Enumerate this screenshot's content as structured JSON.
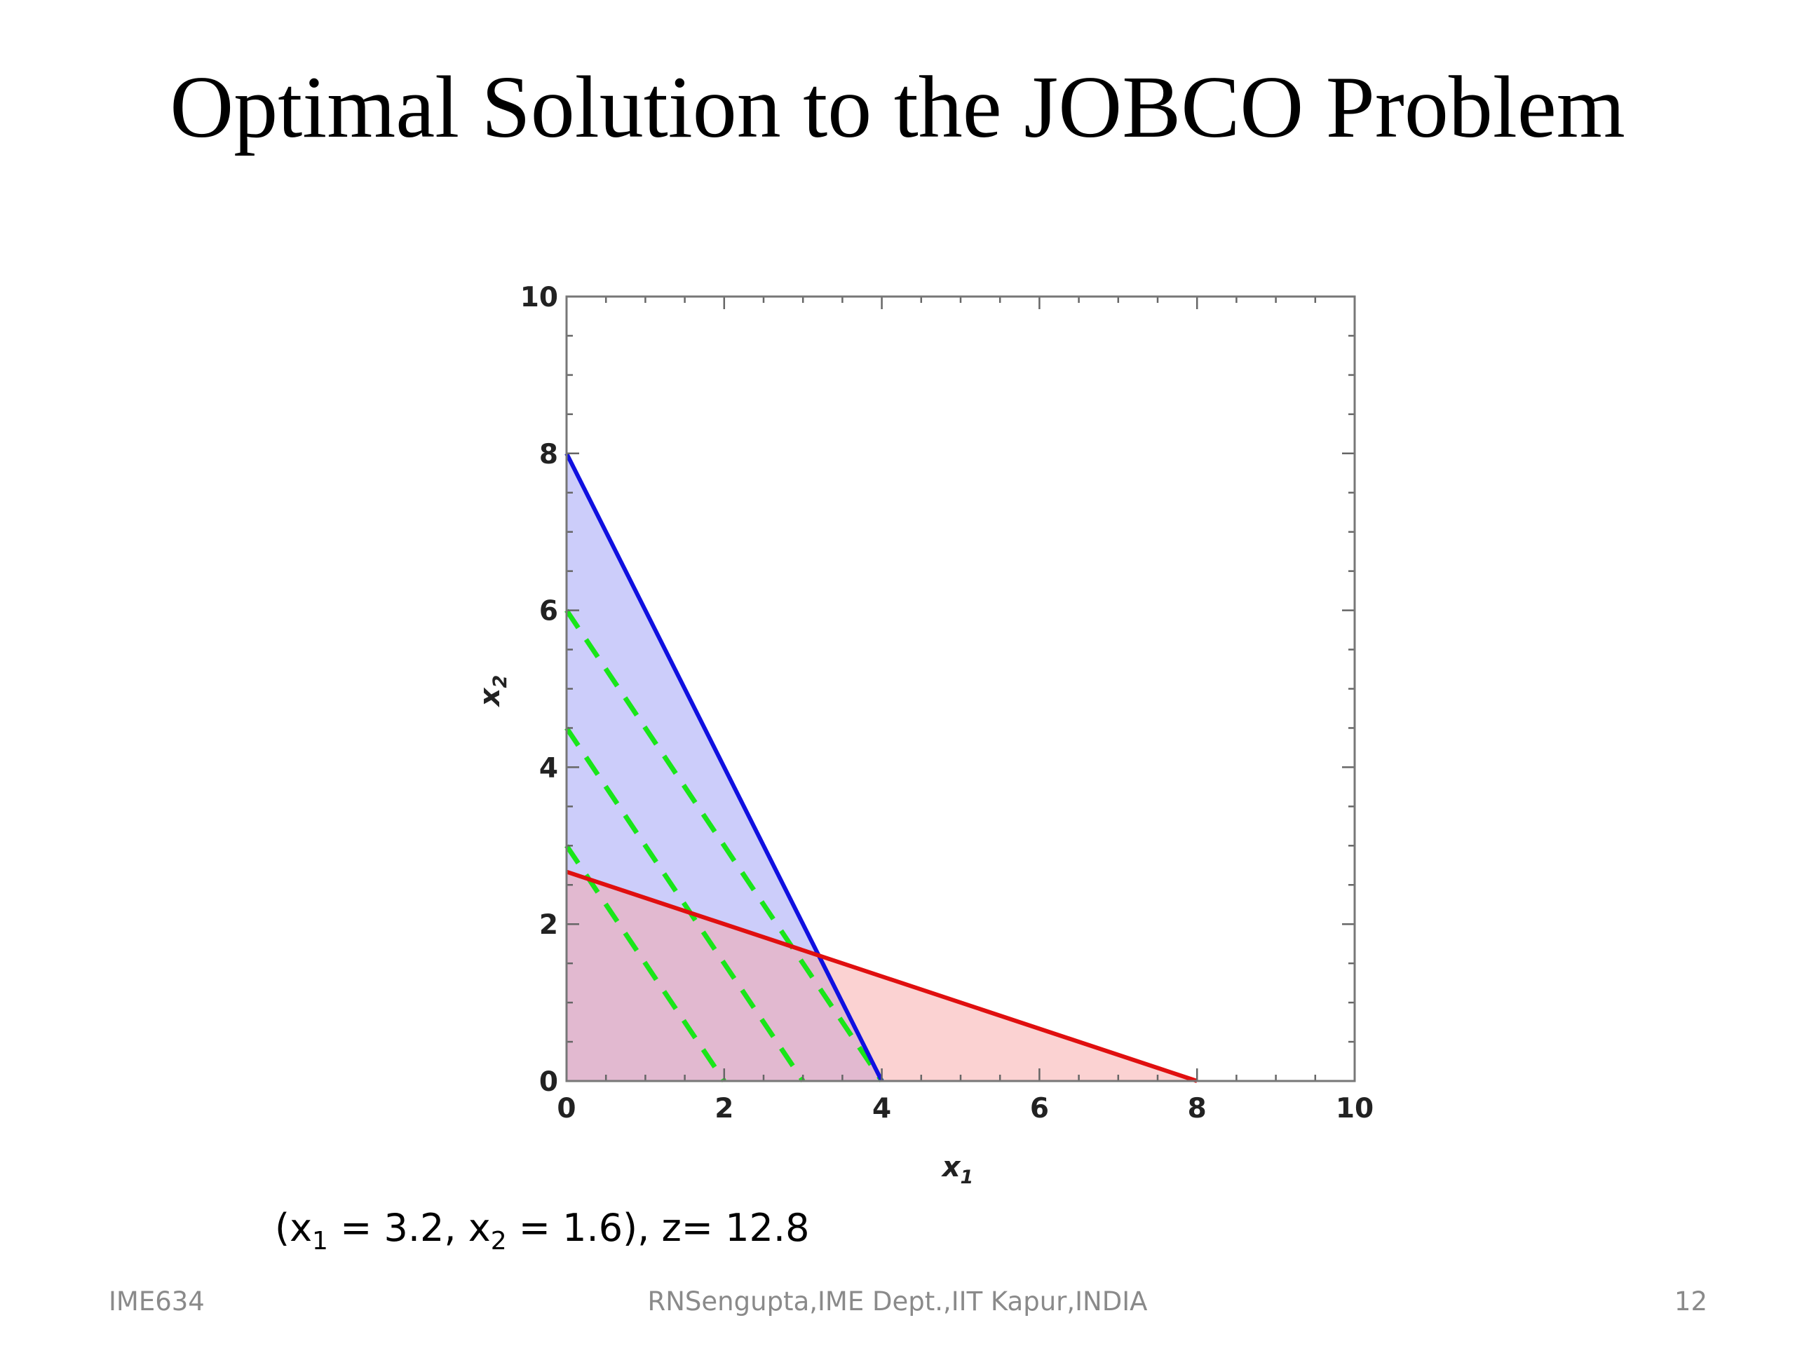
{
  "slide": {
    "title": "Optimal Solution to the JOBCO Problem",
    "solution": {
      "prefix": "(x",
      "x1_sub": "1",
      "x1_text": " = 3.2, x",
      "x2_sub": "2",
      "x2_text": " = 1.6), z= 12.8"
    },
    "footer_left": "IME634",
    "footer_center": "RNSengupta,IME Dept.,IIT Kapur,INDIA",
    "footer_right": "12"
  },
  "chart_data": {
    "type": "area",
    "xlabel": "x",
    "xlabel_sub": "1",
    "ylabel": "x",
    "ylabel_sub": "2",
    "xlim": [
      0,
      10
    ],
    "ylim": [
      0,
      10
    ],
    "xticks": [
      "0",
      "2",
      "4",
      "6",
      "8",
      "10"
    ],
    "yticks": [
      "0",
      "2",
      "4",
      "6",
      "8",
      "10"
    ],
    "grid": false,
    "constraints": [
      {
        "name": "blue-constraint",
        "x": [
          0,
          4
        ],
        "y": [
          8,
          0
        ],
        "line_color": "#1010e0",
        "fill_color": "#9a9cf5"
      },
      {
        "name": "red-constraint",
        "x": [
          0,
          8
        ],
        "y": [
          2.667,
          0
        ],
        "line_color": "#e00f0f",
        "fill_color": "#f8a6a6"
      }
    ],
    "objective_lines": [
      {
        "x": [
          0,
          2
        ],
        "y": [
          3,
          0
        ]
      },
      {
        "x": [
          0,
          3
        ],
        "y": [
          4.5,
          0
        ]
      },
      {
        "x": [
          0,
          4
        ],
        "y": [
          6,
          0
        ]
      }
    ],
    "objective_color": "#19e619",
    "optimum": {
      "x": 3.2,
      "y": 1.6
    }
  }
}
